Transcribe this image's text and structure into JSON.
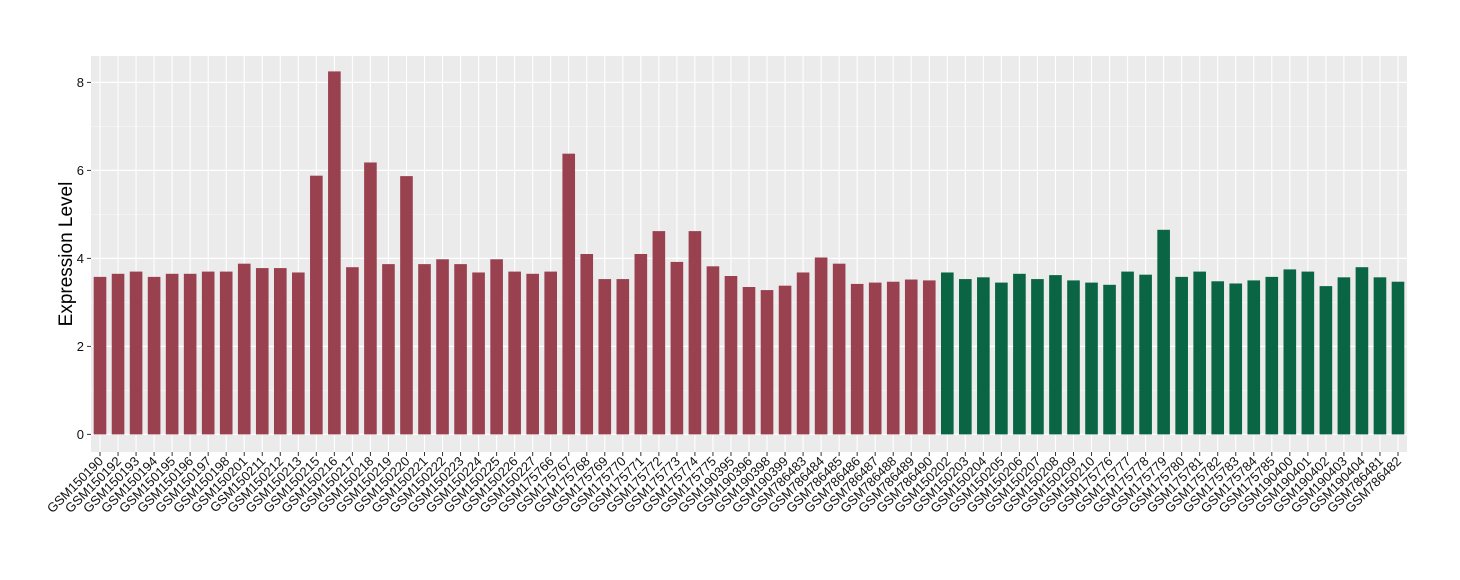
{
  "chart_data": {
    "type": "bar",
    "title": "",
    "xlabel": "",
    "ylabel": "Expression Level",
    "ylim": [
      -0.4,
      8.6
    ],
    "yticks": [
      0,
      2,
      4,
      6,
      8
    ],
    "grid": true,
    "legend": "none",
    "colors": {
      "group_1": "#9a4150",
      "group_2": "#0a6545",
      "panel_bg": "#ebebeb",
      "grid_major": "#ffffff"
    },
    "categories": [
      "GSM150190",
      "GSM150192",
      "GSM150193",
      "GSM150194",
      "GSM150195",
      "GSM150196",
      "GSM150197",
      "GSM150198",
      "GSM150201",
      "GSM150211",
      "GSM150212",
      "GSM150213",
      "GSM150215",
      "GSM150216",
      "GSM150217",
      "GSM150218",
      "GSM150219",
      "GSM150220",
      "GSM150221",
      "GSM150222",
      "GSM150223",
      "GSM150224",
      "GSM150225",
      "GSM150226",
      "GSM150227",
      "GSM175766",
      "GSM175767",
      "GSM175768",
      "GSM175769",
      "GSM175770",
      "GSM175771",
      "GSM175772",
      "GSM175773",
      "GSM175774",
      "GSM175775",
      "GSM190395",
      "GSM190396",
      "GSM190398",
      "GSM190399",
      "GSM786483",
      "GSM786484",
      "GSM786485",
      "GSM786486",
      "GSM786487",
      "GSM786488",
      "GSM786489",
      "GSM786490",
      "GSM150202",
      "GSM150203",
      "GSM150204",
      "GSM150205",
      "GSM150206",
      "GSM150207",
      "GSM150208",
      "GSM150209",
      "GSM150210",
      "GSM175776",
      "GSM175777",
      "GSM175778",
      "GSM175779",
      "GSM175780",
      "GSM175781",
      "GSM175782",
      "GSM175783",
      "GSM175784",
      "GSM175785",
      "GSM190400",
      "GSM190401",
      "GSM190402",
      "GSM190403",
      "GSM190404",
      "GSM786481",
      "GSM786482"
    ],
    "values": [
      3.58,
      3.65,
      3.7,
      3.58,
      3.65,
      3.65,
      3.7,
      3.7,
      3.88,
      3.78,
      3.78,
      3.68,
      5.88,
      8.25,
      3.8,
      6.18,
      3.87,
      5.87,
      3.87,
      3.98,
      3.87,
      3.68,
      3.98,
      3.7,
      3.65,
      3.7,
      6.38,
      4.1,
      3.53,
      3.53,
      4.1,
      4.62,
      3.92,
      4.62,
      3.82,
      3.6,
      3.35,
      3.28,
      3.38,
      3.68,
      4.02,
      3.88,
      3.42,
      3.45,
      3.47,
      3.52,
      3.5,
      3.68,
      3.53,
      3.57,
      3.45,
      3.65,
      3.53,
      3.62,
      3.5,
      3.45,
      3.4,
      3.7,
      3.63,
      4.65,
      3.58,
      3.7,
      3.48,
      3.43,
      3.5,
      3.58,
      3.75,
      3.7,
      3.37,
      3.57,
      3.8,
      3.57,
      3.47
    ],
    "groups": [
      1,
      1,
      1,
      1,
      1,
      1,
      1,
      1,
      1,
      1,
      1,
      1,
      1,
      1,
      1,
      1,
      1,
      1,
      1,
      1,
      1,
      1,
      1,
      1,
      1,
      1,
      1,
      1,
      1,
      1,
      1,
      1,
      1,
      1,
      1,
      1,
      1,
      1,
      1,
      1,
      1,
      1,
      1,
      1,
      1,
      1,
      1,
      2,
      2,
      2,
      2,
      2,
      2,
      2,
      2,
      2,
      2,
      2,
      2,
      2,
      2,
      2,
      2,
      2,
      2,
      2,
      2,
      2,
      2,
      2,
      2,
      2,
      2
    ]
  }
}
